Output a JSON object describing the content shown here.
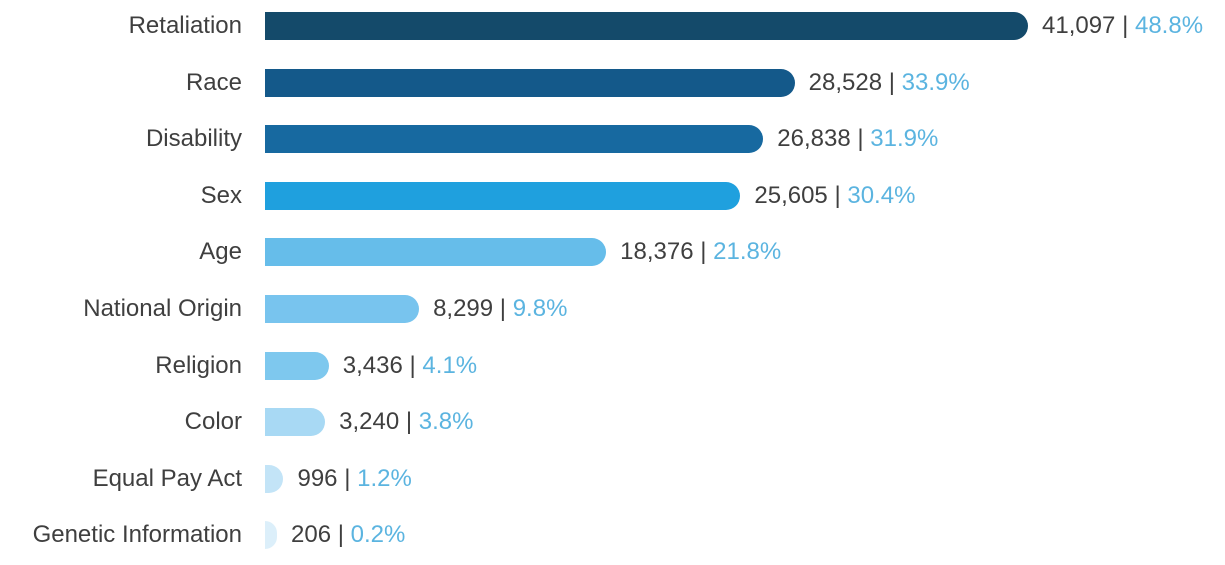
{
  "chart_data": {
    "type": "bar",
    "orientation": "horizontal",
    "categories": [
      "Retaliation",
      "Race",
      "Disability",
      "Sex",
      "Age",
      "National Origin",
      "Religion",
      "Color",
      "Equal Pay Act",
      "Genetic Information"
    ],
    "values": [
      41097,
      28528,
      26838,
      25605,
      18376,
      8299,
      3436,
      3240,
      996,
      206
    ],
    "count_labels": [
      "41,097",
      "28,528",
      "26,838",
      "25,605",
      "18,376",
      "8,299",
      "3,436",
      "3,240",
      "996",
      "206"
    ],
    "percent_labels": [
      "48.8%",
      "33.9%",
      "31.9%",
      "30.4%",
      "21.8%",
      "9.8%",
      "4.1%",
      "3.8%",
      "1.2%",
      "0.2%"
    ],
    "separator": "|",
    "bar_colors": [
      "#144a6a",
      "#14598a",
      "#1769a0",
      "#1fa0de",
      "#66bdea",
      "#78c4ee",
      "#7ec8ee",
      "#a8d9f4",
      "#c3e4f7",
      "#dceffa"
    ],
    "percent_color": "#5bb4e0",
    "xlim": [
      0,
      41097
    ],
    "grid": false,
    "legend": "none"
  }
}
